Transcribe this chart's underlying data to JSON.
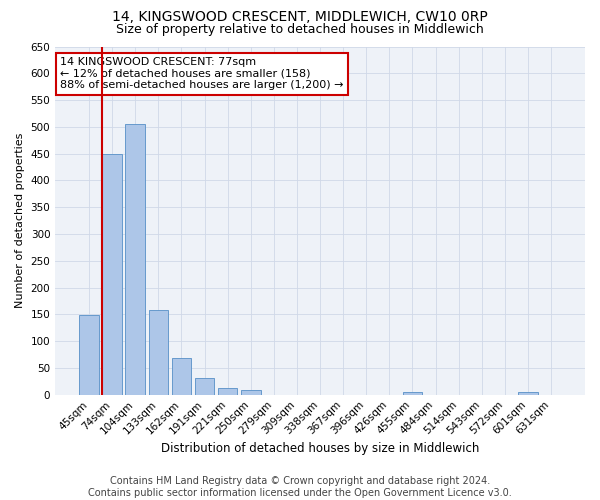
{
  "title1": "14, KINGSWOOD CRESCENT, MIDDLEWICH, CW10 0RP",
  "title2": "Size of property relative to detached houses in Middlewich",
  "xlabel": "Distribution of detached houses by size in Middlewich",
  "ylabel": "Number of detached properties",
  "categories": [
    "45sqm",
    "74sqm",
    "104sqm",
    "133sqm",
    "162sqm",
    "191sqm",
    "221sqm",
    "250sqm",
    "279sqm",
    "309sqm",
    "338sqm",
    "367sqm",
    "396sqm",
    "426sqm",
    "455sqm",
    "484sqm",
    "514sqm",
    "543sqm",
    "572sqm",
    "601sqm",
    "631sqm"
  ],
  "values": [
    148,
    450,
    505,
    158,
    68,
    32,
    13,
    8,
    0,
    0,
    0,
    0,
    0,
    0,
    6,
    0,
    0,
    0,
    0,
    5,
    0
  ],
  "bar_color": "#adc6e8",
  "bar_edge_color": "#6699cc",
  "vline_color": "#cc0000",
  "vline_xdata": 0.575,
  "annotation_text": "14 KINGSWOOD CRESCENT: 77sqm\n← 12% of detached houses are smaller (158)\n88% of semi-detached houses are larger (1,200) →",
  "annotation_box_color": "#cc0000",
  "ylim": [
    0,
    650
  ],
  "yticks": [
    0,
    50,
    100,
    150,
    200,
    250,
    300,
    350,
    400,
    450,
    500,
    550,
    600,
    650
  ],
  "grid_color": "#d0d8e8",
  "bg_color": "#eef2f8",
  "footer_text": "Contains HM Land Registry data © Crown copyright and database right 2024.\nContains public sector information licensed under the Open Government Licence v3.0.",
  "title1_fontsize": 10,
  "title2_fontsize": 9,
  "xlabel_fontsize": 8.5,
  "ylabel_fontsize": 8,
  "tick_fontsize": 7.5,
  "annotation_fontsize": 8,
  "footer_fontsize": 7
}
